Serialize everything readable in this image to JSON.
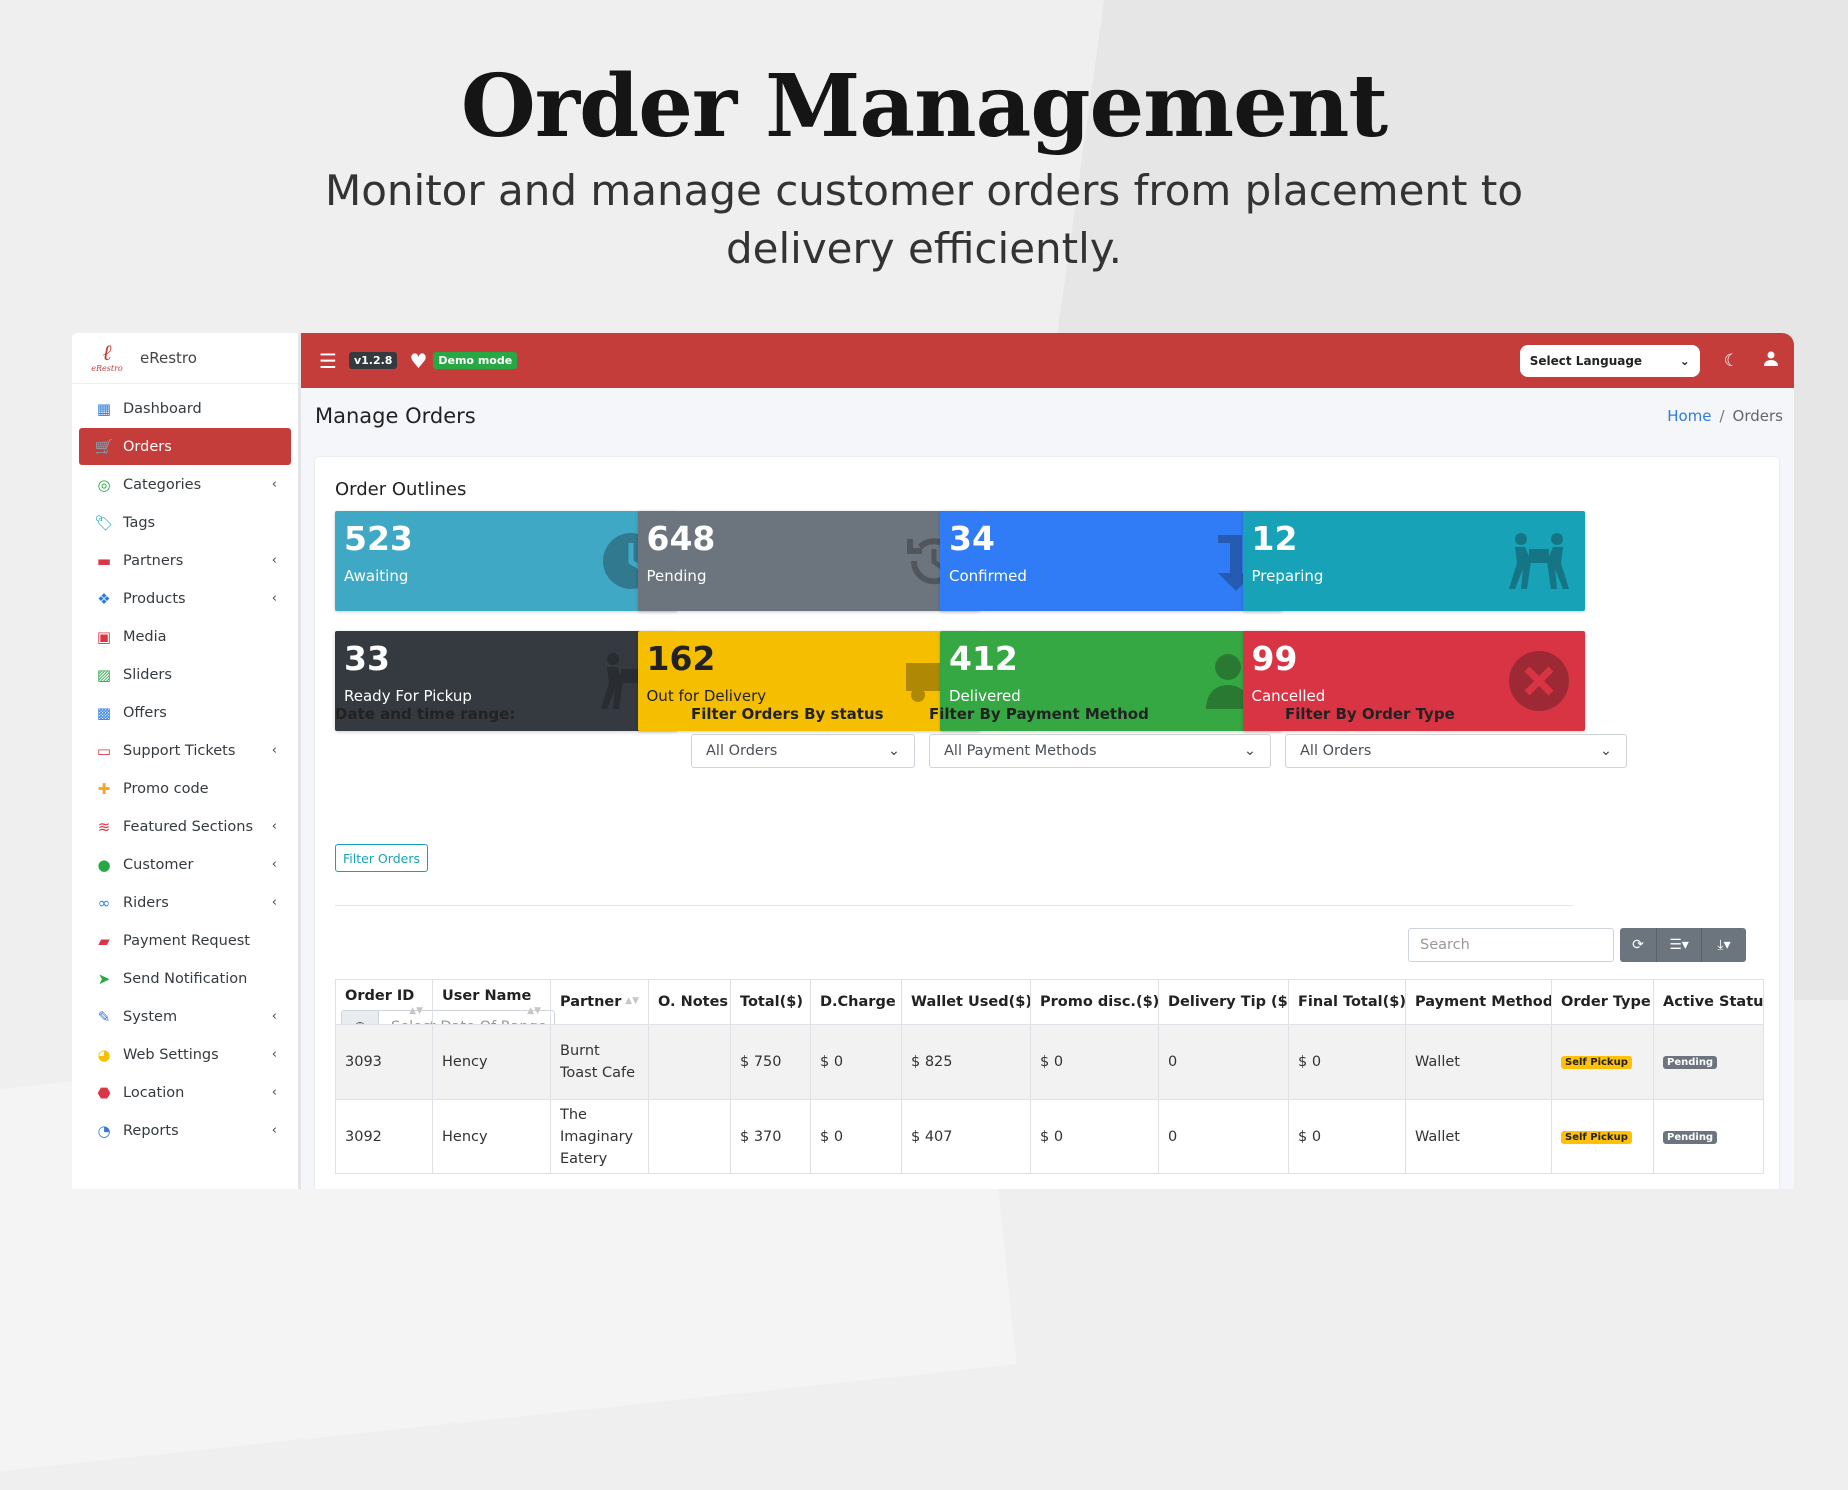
{
  "hero": {
    "title": "Order Management",
    "subtitle": "Monitor and manage customer orders from placement to delivery efficiently."
  },
  "brand": {
    "logo_text": "eRestro",
    "name": "eRestro"
  },
  "sidebar": {
    "items": [
      {
        "label": "Dashboard",
        "icon": "dashboard-icon",
        "chevron": false,
        "active": false
      },
      {
        "label": "Orders",
        "icon": "cart-icon",
        "chevron": false,
        "active": true
      },
      {
        "label": "Categories",
        "icon": "bullseye-icon",
        "chevron": true,
        "active": false
      },
      {
        "label": "Tags",
        "icon": "tag-icon",
        "chevron": false,
        "active": false
      },
      {
        "label": "Partners",
        "icon": "store-icon",
        "chevron": true,
        "active": false
      },
      {
        "label": "Products",
        "icon": "cubes-icon",
        "chevron": true,
        "active": false
      },
      {
        "label": "Media",
        "icon": "photo-video-icon",
        "chevron": false,
        "active": false
      },
      {
        "label": "Sliders",
        "icon": "image-icon",
        "chevron": false,
        "active": false
      },
      {
        "label": "Offers",
        "icon": "gift-icon",
        "chevron": false,
        "active": false
      },
      {
        "label": "Support Tickets",
        "icon": "ticket-icon",
        "chevron": true,
        "active": false
      },
      {
        "label": "Promo code",
        "icon": "puzzle-icon",
        "chevron": false,
        "active": false
      },
      {
        "label": "Featured Sections",
        "icon": "layer-icon",
        "chevron": true,
        "active": false
      },
      {
        "label": "Customer",
        "icon": "user-icon",
        "chevron": true,
        "active": false
      },
      {
        "label": "Riders",
        "icon": "bicycle-icon",
        "chevron": true,
        "active": false
      },
      {
        "label": "Payment Request",
        "icon": "money-icon",
        "chevron": false,
        "active": false
      },
      {
        "label": "Send Notification",
        "icon": "paper-plane-icon",
        "chevron": false,
        "active": false
      },
      {
        "label": "System",
        "icon": "wrench-icon",
        "chevron": true,
        "active": false
      },
      {
        "label": "Web Settings",
        "icon": "globe-icon",
        "chevron": true,
        "active": false
      },
      {
        "label": "Location",
        "icon": "map-marker-icon",
        "chevron": true,
        "active": false
      },
      {
        "label": "Reports",
        "icon": "pie-chart-icon",
        "chevron": true,
        "active": false
      }
    ]
  },
  "topbar": {
    "version": "v1.2.8",
    "demo": "Demo mode",
    "language_select": "Select Language"
  },
  "page": {
    "title": "Manage Orders",
    "breadcrumb_home": "Home",
    "breadcrumb_current": "Orders"
  },
  "outlines": {
    "title": "Order Outlines",
    "stats": [
      {
        "value": "523",
        "label": "Awaiting",
        "color": "#3fa8c5",
        "icon": "clock-icon"
      },
      {
        "value": "648",
        "label": "Pending",
        "color": "#6c757d",
        "icon": "history-icon"
      },
      {
        "value": "34",
        "label": "Confirmed",
        "color": "#2f7cf6",
        "icon": "level-down-icon"
      },
      {
        "value": "12",
        "label": "Preparing",
        "color": "#17a2b8",
        "icon": "people-carry-icon"
      },
      {
        "value": "33",
        "label": "Ready For Pickup",
        "color": "#343a40",
        "icon": "people-carry-icon"
      },
      {
        "value": "162",
        "label": "Out for Delivery",
        "color": "#f5bf00",
        "icon": "truck-icon"
      },
      {
        "value": "412",
        "label": "Delivered",
        "color": "#36a843",
        "icon": "user-check-icon"
      },
      {
        "value": "99",
        "label": "Cancelled",
        "color": "#d93444",
        "icon": "times-circle-icon"
      }
    ]
  },
  "filters": {
    "date_label": "Date and time range:",
    "date_placeholder": "Select Date Of Range",
    "status_label": "Filter Orders By status",
    "status_value": "All Orders",
    "payment_label": "Filter By Payment Method",
    "payment_value": "All Payment Methods",
    "type_label": "Filter By Order Type",
    "type_value": "All Orders",
    "button": "Filter Orders"
  },
  "table": {
    "search_placeholder": "Search",
    "columns": [
      "Order ID",
      "User Name",
      "Partner",
      "O. Notes",
      "Total($)",
      "D.Charge",
      "Wallet Used($)",
      "Promo disc.($)",
      "Delivery Tip ($)",
      "Final Total($)",
      "Payment Method",
      "Order Type",
      "Active Status"
    ],
    "rows": [
      {
        "id": "3093",
        "user": "Hency",
        "partner": "Burnt Toast Cafe",
        "notes": "",
        "total": "$ 750",
        "dcharge": "$ 0",
        "wallet": "$ 825",
        "promo": "$ 0",
        "tip": "0",
        "final": "$ 0",
        "payment": "Wallet",
        "type": "Self Pickup",
        "status": "Pending"
      },
      {
        "id": "3092",
        "user": "Hency",
        "partner": "The Imaginary Eatery",
        "notes": "",
        "total": "$ 370",
        "dcharge": "$ 0",
        "wallet": "$ 407",
        "promo": "$ 0",
        "tip": "0",
        "final": "$ 0",
        "payment": "Wallet",
        "type": "Self Pickup",
        "status": "Pending"
      }
    ]
  }
}
